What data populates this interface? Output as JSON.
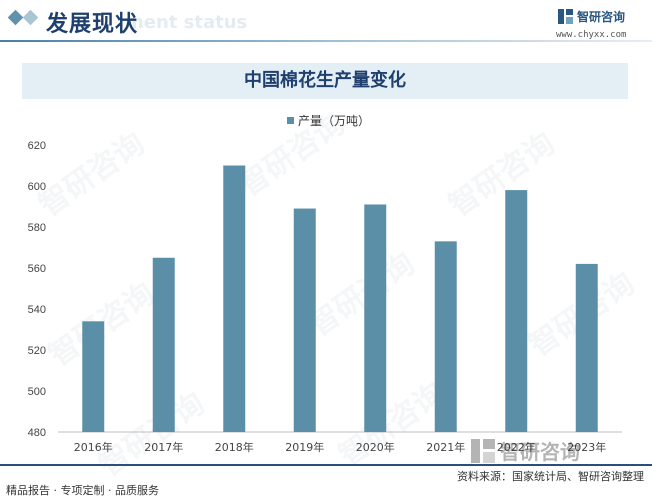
{
  "header": {
    "title": "发展现状",
    "ghost_text": "ment status",
    "brand_name": "智研咨询",
    "brand_url": "www.chyxx.com"
  },
  "watermark_text": "智研咨询",
  "chart_data": {
    "type": "bar",
    "title": "中国棉花生产量变化",
    "categories": [
      "2016年",
      "2017年",
      "2018年",
      "2019年",
      "2020年",
      "2021年",
      "2022年",
      "2023年"
    ],
    "series": [
      {
        "name": "产量（万吨）",
        "values": [
          534,
          565,
          610,
          589,
          591,
          573,
          598,
          562
        ],
        "color": "#5b8fa8"
      }
    ],
    "ylim": [
      480,
      620
    ],
    "yticks": [
      480,
      500,
      520,
      540,
      560,
      580,
      600,
      620
    ],
    "xlabel": "",
    "ylabel": "",
    "grid": false,
    "legend_position": "top-center"
  },
  "footer": {
    "left_text": "精品报告 · 专项定制 · 品质服务",
    "source_text": "资料来源：国家统计局、智研咨询整理",
    "brand_name": "智研咨询"
  }
}
